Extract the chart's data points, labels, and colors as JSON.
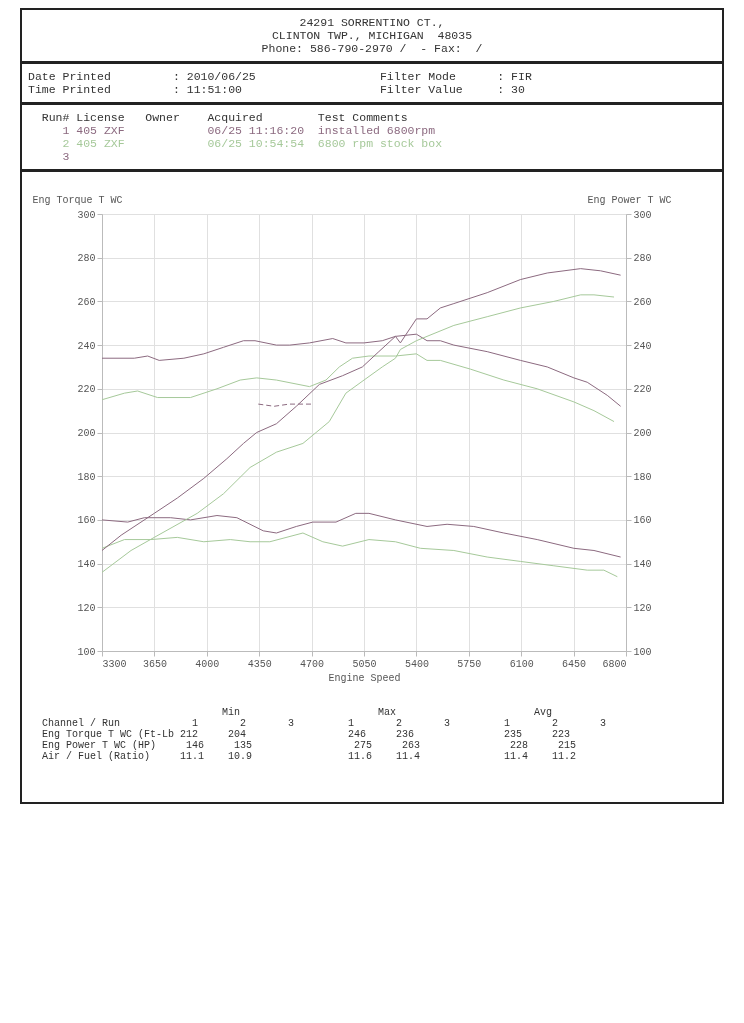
{
  "chart_data": {
    "type": "line",
    "xlabel": "Engine Speed",
    "ylabel": "Eng Torque T WC",
    "y2label": "Eng Power T WC",
    "xlim": [
      3300,
      6800
    ],
    "xticks": [
      3300,
      3650,
      4000,
      4350,
      4700,
      5050,
      5400,
      5750,
      6100,
      6450,
      6800
    ],
    "ylim": [
      100,
      300
    ],
    "yticks": [
      100,
      120,
      140,
      160,
      180,
      200,
      220,
      240,
      260,
      280,
      300
    ],
    "y2lim": [
      100,
      300
    ],
    "y2ticks": [
      100,
      120,
      140,
      160,
      180,
      200,
      220,
      240,
      260,
      280,
      300
    ],
    "grid": true,
    "legend": false,
    "marker": "none",
    "annotations": [
      "24291 SORRENTINO CT.,",
      "CLINTON TWP., MICHIGAN  48035",
      "Phone: 586-790-2970 /  - Fax:  /",
      "Date Printed         : 2010/06/25                  Filter Mode      : FIR",
      "Time Printed         : 11:51:00                    Filter Value     : 30",
      "  Run# License   Owner    Acquired        Test Comments",
      "     1 405 ZXF            06/25 11:16:20  installed 6800rpm",
      "     2 405 ZXF            06/25 10:54:54  6800 rpm stock box",
      "     3",
      "                              Min                       Max                       Avg",
      "Channel / Run            1       2       3         1       2       3         1       2       3",
      "Eng Torque T WC (Ft-Lb 212     204                 246     236               235     223",
      "Eng Power T WC (HP)     146     135                 275     263               228     215",
      "Air / Fuel (Ratio)     11.1    10.9                11.6    11.4              11.4    11.2"
    ],
    "series": [
      {
        "color": "#8c6a80",
        "x": [
          3300,
          3516,
          3605,
          3682,
          3847,
          3980,
          4112,
          4245,
          4322,
          4465,
          4554,
          4686,
          4841,
          4929,
          5050,
          5172,
          5260,
          5400,
          5471,
          5560,
          5650,
          5873,
          6095,
          6274,
          6452,
          6541,
          6675,
          6764
        ],
        "values": [
          234,
          234,
          235,
          233,
          234,
          236,
          239,
          242,
          242,
          240,
          240,
          241,
          243,
          241,
          241,
          242,
          244,
          245,
          242,
          242,
          240,
          237,
          233,
          230,
          225,
          223,
          217,
          212
        ]
      },
      {
        "color": "#a6c99a",
        "x": [
          3300,
          3450,
          3538,
          3671,
          3891,
          4068,
          4223,
          4333,
          4465,
          4686,
          4796,
          4885,
          4973,
          5083,
          5260,
          5400,
          5471,
          5560,
          5761,
          5984,
          6207,
          6452,
          6586,
          6720
        ],
        "values": [
          215,
          218,
          219,
          216,
          216,
          220,
          224,
          225,
          224,
          221,
          224,
          230,
          234,
          235,
          235,
          236,
          233,
          233,
          229,
          224,
          220,
          214,
          210,
          205
        ]
      },
      {
        "color": "#8c6a80",
        "axis": "y2",
        "x": [
          3300,
          3428,
          3649,
          3803,
          3980,
          4134,
          4245,
          4333,
          4465,
          4598,
          4752,
          4907,
          5039,
          5149,
          5260,
          5293,
          5400,
          5471,
          5560,
          5650,
          5873,
          6095,
          6274,
          6497,
          6630,
          6764
        ],
        "values": [
          146,
          153,
          163,
          170,
          179,
          188,
          195,
          200,
          204,
          212,
          222,
          226,
          230,
          237,
          244,
          241,
          252,
          252,
          257,
          259,
          264,
          270,
          273,
          275,
          274,
          272
        ]
      },
      {
        "color": "#a6c99a",
        "axis": "y2",
        "x": [
          3300,
          3494,
          3649,
          3936,
          4112,
          4289,
          4465,
          4642,
          4818,
          4929,
          5050,
          5172,
          5260,
          5293,
          5400,
          5471,
          5650,
          5873,
          6095,
          6318,
          6497,
          6586,
          6720
        ],
        "values": [
          136,
          146,
          152,
          163,
          172,
          184,
          191,
          195,
          205,
          218,
          224,
          230,
          234,
          238,
          242,
          244,
          249,
          253,
          257,
          260,
          263,
          263,
          262
        ]
      },
      {
        "color": "#8c6a80",
        "x": [
          3300,
          3472,
          3583,
          3759,
          3891,
          4068,
          4201,
          4377,
          4465,
          4598,
          4708,
          4863,
          4995,
          5083,
          5260,
          5471,
          5605,
          5783,
          5984,
          6207,
          6452,
          6586,
          6764
        ],
        "values": [
          160,
          159,
          161,
          161,
          160,
          162,
          161,
          155,
          154,
          157,
          159,
          159,
          163,
          163,
          160,
          157,
          158,
          157,
          154,
          151,
          147,
          146,
          143
        ]
      },
      {
        "color": "#a6c99a",
        "x": [
          3300,
          3450,
          3627,
          3803,
          3980,
          4157,
          4289,
          4421,
          4642,
          4775,
          4907,
          5083,
          5260,
          5427,
          5650,
          5873,
          6095,
          6318,
          6541,
          6652,
          6742
        ],
        "values": [
          147,
          151,
          151,
          152,
          150,
          151,
          150,
          150,
          154,
          150,
          148,
          151,
          150,
          147,
          146,
          143,
          141,
          139,
          137,
          137,
          134
        ]
      },
      {
        "color": "#8c6a80",
        "line_style": "dashed",
        "x": [
          4344,
          4450,
          4550,
          4708
        ],
        "values": [
          213,
          212,
          213,
          213
        ]
      }
    ]
  }
}
